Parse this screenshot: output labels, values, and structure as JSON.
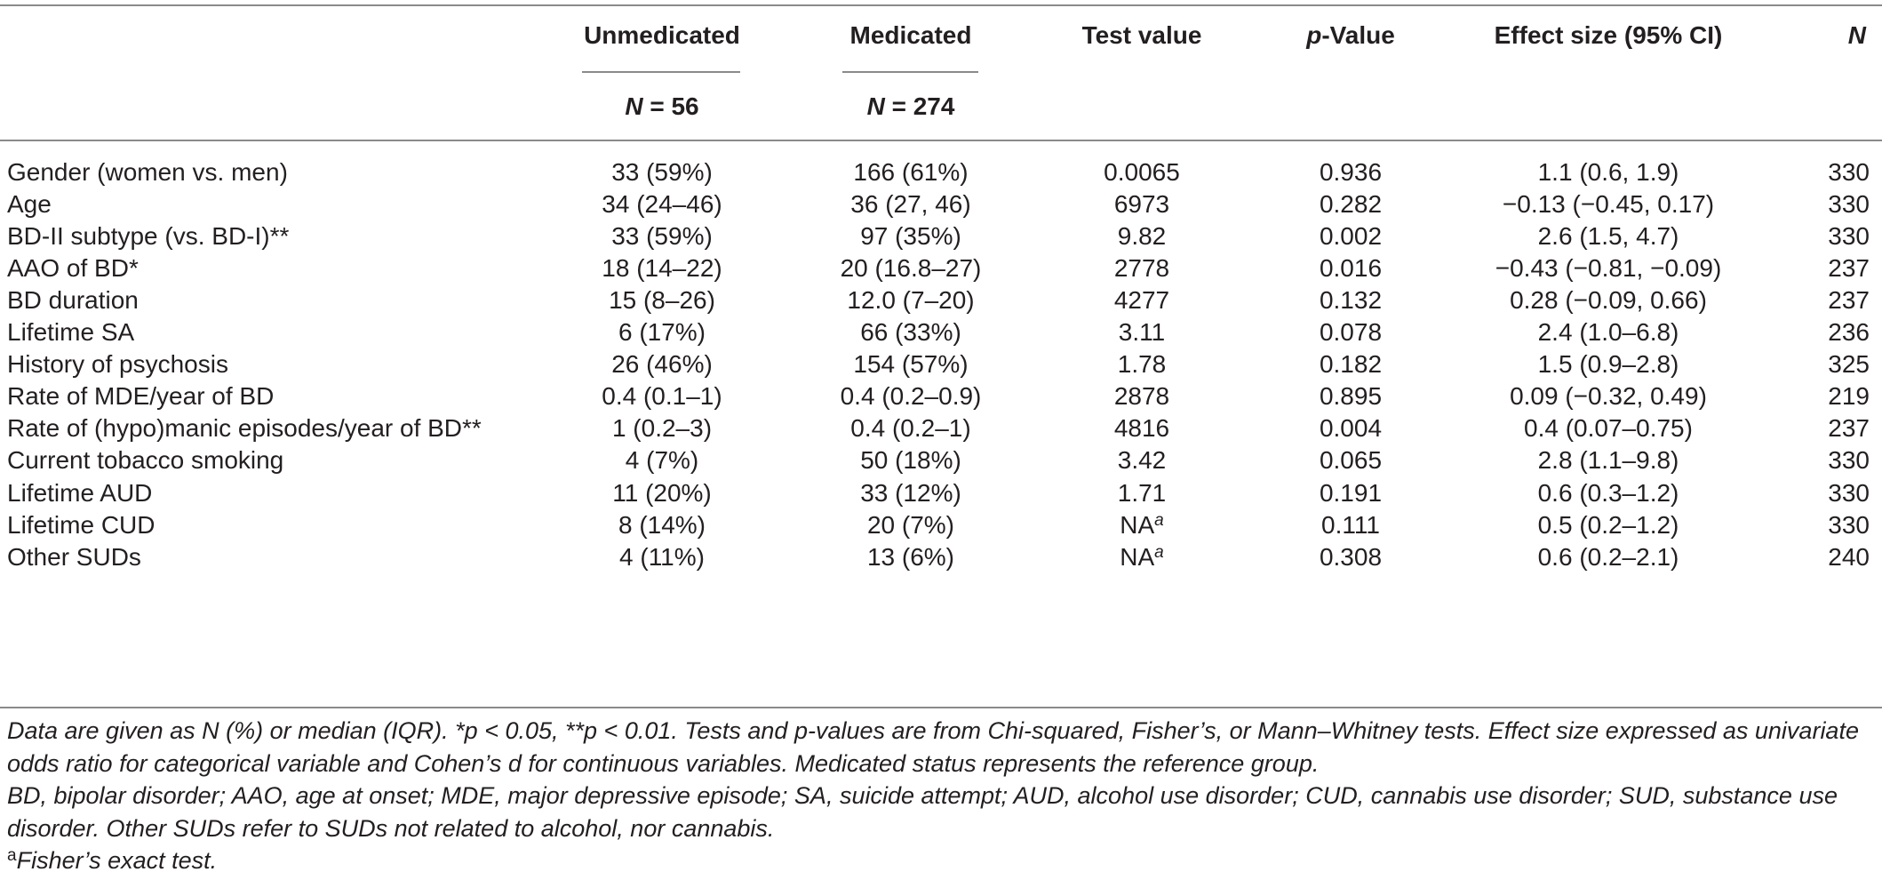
{
  "header": {
    "col_unmedicated": "Unmedicated",
    "col_medicated": "Medicated",
    "col_test_value": "Test value",
    "col_pvalue_italic": "p",
    "col_pvalue_rest": "-Value",
    "col_effect_size": "Effect size (95% CI)",
    "col_n": "N",
    "n_unmedicated_italic": "N",
    "n_unmedicated_rest": " = 56",
    "n_medicated_italic": "N",
    "n_medicated_rest": " = 274"
  },
  "rows": [
    {
      "label": "Gender (women vs. men)",
      "unmedicated": "33 (59%)",
      "medicated": "166 (61%)",
      "test": "0.0065",
      "test_sup": "",
      "p": "0.936",
      "effect": "1.1 (0.6, 1.9)",
      "n": "330"
    },
    {
      "label": "Age",
      "unmedicated": "34 (24–46)",
      "medicated": "36 (27, 46)",
      "test": "6973",
      "test_sup": "",
      "p": "0.282",
      "effect": "−0.13 (−0.45, 0.17)",
      "n": "330"
    },
    {
      "label": "BD-II subtype (vs. BD-I)**",
      "unmedicated": "33 (59%)",
      "medicated": "97 (35%)",
      "test": "9.82",
      "test_sup": "",
      "p": "0.002",
      "effect": "2.6 (1.5, 4.7)",
      "n": "330"
    },
    {
      "label": "AAO of BD*",
      "unmedicated": "18 (14–22)",
      "medicated": "20 (16.8–27)",
      "test": "2778",
      "test_sup": "",
      "p": "0.016",
      "effect": "−0.43 (−0.81, −0.09)",
      "n": "237"
    },
    {
      "label": "BD duration",
      "unmedicated": "15 (8–26)",
      "medicated": "12.0 (7–20)",
      "test": "4277",
      "test_sup": "",
      "p": "0.132",
      "effect": "0.28 (−0.09, 0.66)",
      "n": "237"
    },
    {
      "label": "Lifetime SA",
      "unmedicated": "6 (17%)",
      "medicated": "66 (33%)",
      "test": "3.11",
      "test_sup": "",
      "p": "0.078",
      "effect": "2.4 (1.0–6.8)",
      "n": "236"
    },
    {
      "label": "History of psychosis",
      "unmedicated": "26 (46%)",
      "medicated": "154 (57%)",
      "test": "1.78",
      "test_sup": "",
      "p": "0.182",
      "effect": "1.5 (0.9–2.8)",
      "n": "325"
    },
    {
      "label": "Rate of MDE/year of BD",
      "unmedicated": "0.4 (0.1–1)",
      "medicated": "0.4 (0.2–0.9)",
      "test": "2878",
      "test_sup": "",
      "p": "0.895",
      "effect": "0.09 (−0.32, 0.49)",
      "n": "219"
    },
    {
      "label": "Rate of (hypo)manic episodes/year of BD**",
      "unmedicated": "1 (0.2–3)",
      "medicated": "0.4 (0.2–1)",
      "test": "4816",
      "test_sup": "",
      "p": "0.004",
      "effect": "0.4 (0.07–0.75)",
      "n": "237"
    },
    {
      "label": "Current tobacco smoking",
      "unmedicated": "4 (7%)",
      "medicated": "50 (18%)",
      "test": "3.42",
      "test_sup": "",
      "p": "0.065",
      "effect": "2.8 (1.1–9.8)",
      "n": "330"
    },
    {
      "label": "Lifetime AUD",
      "unmedicated": "11 (20%)",
      "medicated": "33 (12%)",
      "test": "1.71",
      "test_sup": "",
      "p": "0.191",
      "effect": "0.6 (0.3–1.2)",
      "n": "330"
    },
    {
      "label": "Lifetime CUD",
      "unmedicated": "8 (14%)",
      "medicated": "20 (7%)",
      "test": "NA",
      "test_sup": "a",
      "p": "0.111",
      "effect": "0.5 (0.2–1.2)",
      "n": "330"
    },
    {
      "label": "Other SUDs",
      "unmedicated": "4 (11%)",
      "medicated": "13 (6%)",
      "test": "NA",
      "test_sup": "a",
      "p": "0.308",
      "effect": "0.6 (0.2–2.1)",
      "n": "240"
    }
  ],
  "notes": {
    "note1": "Data are given as N (%) or median (IQR). *p < 0.05, **p < 0.01. Tests and p-values are from Chi-squared, Fisher’s, or Mann–Whitney tests. Effect size expressed as univariate odds ratio for categorical variable and Cohen’s d for continuous variables. Medicated status represents the reference group.",
    "note2": "BD, bipolar disorder; AAO, age at onset; MDE, major depressive episode; SA, suicide attempt; AUD, alcohol use disorder; CUD, cannabis use disorder; SUD, substance use disorder. Other SUDs refer to SUDs not related to alcohol, nor cannabis.",
    "footnote_letter": "a",
    "footnote_text": "Fisher’s exact test."
  }
}
